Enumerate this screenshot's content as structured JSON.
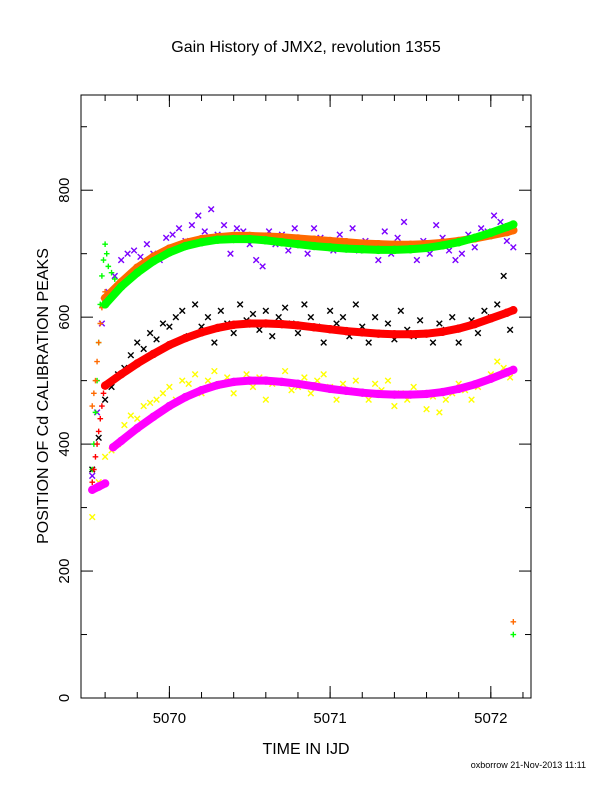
{
  "chart_data": {
    "type": "scatter",
    "title": "Gain History of JMX2, revolution 1355",
    "xlabel": "TIME IN IJD",
    "ylabel": "POSITION OF Cd CALIBRATION PEAKS",
    "xlim": [
      5069.45,
      5072.25
    ],
    "ylim": [
      0,
      950
    ],
    "xticks": [
      "5070",
      "5071",
      "5072"
    ],
    "yticks": [
      "0",
      "200",
      "400",
      "600",
      "800"
    ],
    "grid": false,
    "credit": "oxborrow 21-Nov-2013 11:11",
    "series": [
      {
        "color": "#7b00ff",
        "marker": "x",
        "values_x": [
          5069.52,
          5069.55,
          5069.58,
          5069.62,
          5069.66,
          5069.7,
          5069.74,
          5069.78,
          5069.82,
          5069.86,
          5069.9,
          5069.94,
          5069.98,
          5070.02,
          5070.06,
          5070.1,
          5070.14,
          5070.18,
          5070.22,
          5070.26,
          5070.3,
          5070.34,
          5070.38,
          5070.42,
          5070.46,
          5070.5,
          5070.54,
          5070.58,
          5070.62,
          5070.66,
          5070.7,
          5070.74,
          5070.78,
          5070.82,
          5070.86,
          5070.9,
          5070.94,
          5070.98,
          5071.02,
          5071.06,
          5071.1,
          5071.14,
          5071.18,
          5071.22,
          5071.26,
          5071.3,
          5071.34,
          5071.38,
          5071.42,
          5071.46,
          5071.5,
          5071.54,
          5071.58,
          5071.62,
          5071.66,
          5071.7,
          5071.74,
          5071.78,
          5071.82,
          5071.86,
          5071.9,
          5071.94,
          5071.98,
          5072.02,
          5072.06,
          5072.1,
          5072.14
        ],
        "values_y": [
          350,
          450,
          590,
          640,
          665,
          690,
          700,
          705,
          695,
          715,
          700,
          690,
          725,
          730,
          740,
          720,
          745,
          760,
          735,
          770,
          730,
          745,
          700,
          740,
          735,
          715,
          690,
          680,
          735,
          715,
          730,
          705,
          740,
          720,
          700,
          740,
          725,
          720,
          705,
          730,
          710,
          740,
          705,
          720,
          715,
          690,
          735,
          700,
          725,
          750,
          710,
          690,
          720,
          700,
          745,
          725,
          705,
          690,
          700,
          730,
          710,
          740,
          735,
          760,
          750,
          720,
          710
        ]
      },
      {
        "color": "#000000",
        "marker": "x",
        "values_x": [
          5069.52,
          5069.56,
          5069.6,
          5069.64,
          5069.68,
          5069.72,
          5069.76,
          5069.8,
          5069.84,
          5069.88,
          5069.92,
          5069.96,
          5070.0,
          5070.04,
          5070.08,
          5070.12,
          5070.16,
          5070.2,
          5070.24,
          5070.28,
          5070.32,
          5070.36,
          5070.4,
          5070.44,
          5070.48,
          5070.52,
          5070.56,
          5070.6,
          5070.64,
          5070.68,
          5070.72,
          5070.76,
          5070.8,
          5070.84,
          5070.88,
          5070.92,
          5070.96,
          5071.0,
          5071.04,
          5071.08,
          5071.12,
          5071.16,
          5071.2,
          5071.24,
          5071.28,
          5071.32,
          5071.36,
          5071.4,
          5071.44,
          5071.48,
          5071.52,
          5071.56,
          5071.6,
          5071.64,
          5071.68,
          5071.72,
          5071.76,
          5071.8,
          5071.84,
          5071.88,
          5071.92,
          5071.96,
          5072.0,
          5072.04,
          5072.08,
          5072.12
        ],
        "values_y": [
          360,
          410,
          470,
          490,
          510,
          520,
          540,
          560,
          550,
          575,
          565,
          590,
          585,
          600,
          610,
          570,
          620,
          585,
          600,
          560,
          610,
          590,
          575,
          620,
          595,
          605,
          580,
          610,
          570,
          600,
          615,
          590,
          575,
          620,
          600,
          585,
          560,
          610,
          590,
          600,
          570,
          620,
          585,
          560,
          600,
          575,
          590,
          565,
          610,
          580,
          570,
          595,
          575,
          560,
          590,
          580,
          600,
          560,
          585,
          595,
          575,
          610,
          600,
          620,
          665,
          580
        ]
      },
      {
        "color": "#ffff00",
        "marker": "x",
        "values_x": [
          5069.52,
          5069.56,
          5069.6,
          5069.64,
          5069.68,
          5069.72,
          5069.76,
          5069.8,
          5069.84,
          5069.88,
          5069.92,
          5069.96,
          5070.0,
          5070.04,
          5070.08,
          5070.12,
          5070.16,
          5070.2,
          5070.24,
          5070.28,
          5070.32,
          5070.36,
          5070.4,
          5070.44,
          5070.48,
          5070.52,
          5070.56,
          5070.6,
          5070.64,
          5070.68,
          5070.72,
          5070.76,
          5070.8,
          5070.84,
          5070.88,
          5070.92,
          5070.96,
          5071.0,
          5071.04,
          5071.08,
          5071.12,
          5071.16,
          5071.2,
          5071.24,
          5071.28,
          5071.32,
          5071.36,
          5071.4,
          5071.44,
          5071.48,
          5071.52,
          5071.56,
          5071.6,
          5071.64,
          5071.68,
          5071.72,
          5071.76,
          5071.8,
          5071.84,
          5071.88,
          5071.92,
          5071.96,
          5072.0,
          5072.04,
          5072.08,
          5072.12
        ],
        "values_y": [
          285,
          340,
          380,
          390,
          400,
          430,
          445,
          440,
          460,
          465,
          470,
          480,
          490,
          470,
          500,
          495,
          510,
          480,
          500,
          515,
          495,
          505,
          480,
          500,
          510,
          490,
          505,
          470,
          495,
          500,
          515,
          485,
          490,
          505,
          480,
          500,
          510,
          490,
          470,
          495,
          485,
          500,
          480,
          470,
          495,
          485,
          500,
          460,
          480,
          470,
          490,
          480,
          455,
          475,
          450,
          470,
          480,
          495,
          485,
          470,
          490,
          500,
          510,
          530,
          520,
          505
        ]
      },
      {
        "color": "#00ff00",
        "marker": "+",
        "values_x": [
          5069.52,
          5069.53,
          5069.54,
          5069.55,
          5069.56,
          5069.57,
          5069.58,
          5069.59,
          5069.6,
          5069.61,
          5069.62,
          5069.64,
          5069.66,
          5072.14
        ],
        "values_y": [
          360,
          400,
          450,
          500,
          560,
          620,
          665,
          690,
          715,
          700,
          680,
          670,
          660,
          100
        ]
      },
      {
        "color": "#ff6a00",
        "marker": "+",
        "values_x": [
          5069.52,
          5069.53,
          5069.54,
          5069.55,
          5069.56,
          5069.57,
          5069.58,
          5069.59,
          5069.6,
          5072.14
        ],
        "values_y": [
          460,
          480,
          500,
          530,
          560,
          590,
          615,
          630,
          640,
          120
        ]
      },
      {
        "color": "#ff0000",
        "marker": "+",
        "values_x": [
          5069.52,
          5069.53,
          5069.54,
          5069.55,
          5069.56,
          5069.57,
          5069.58,
          5069.59,
          5069.6
        ],
        "values_y": [
          340,
          360,
          380,
          400,
          420,
          440,
          460,
          480,
          495
        ]
      },
      {
        "color": "#ff6a00",
        "marker": "fit",
        "values_x": [
          5069.6,
          5069.7,
          5069.8,
          5069.9,
          5070.0,
          5070.1,
          5070.2,
          5070.3,
          5070.4,
          5070.5,
          5070.6,
          5070.7,
          5070.8,
          5070.9,
          5071.0,
          5071.1,
          5071.2,
          5071.3,
          5071.4,
          5071.5,
          5071.6,
          5071.7,
          5071.8,
          5071.9,
          5072.0,
          5072.1,
          5072.14
        ],
        "values_y": [
          630,
          655,
          678,
          695,
          708,
          717,
          723,
          726,
          728,
          728,
          727,
          726,
          724,
          722,
          720,
          718,
          716,
          715,
          714,
          714,
          715,
          717,
          720,
          724,
          729,
          734,
          737
        ]
      },
      {
        "color": "#00ff00",
        "marker": "fit",
        "values_x": [
          5069.6,
          5069.7,
          5069.8,
          5069.9,
          5070.0,
          5070.1,
          5070.2,
          5070.3,
          5070.4,
          5070.5,
          5070.6,
          5070.7,
          5070.8,
          5070.9,
          5071.0,
          5071.1,
          5071.2,
          5071.3,
          5071.4,
          5071.5,
          5071.6,
          5071.7,
          5071.8,
          5071.9,
          5072.0,
          5072.1,
          5072.14
        ],
        "values_y": [
          620,
          648,
          670,
          688,
          702,
          712,
          718,
          722,
          723,
          723,
          721,
          718,
          715,
          712,
          710,
          708,
          707,
          706,
          706,
          707,
          709,
          713,
          718,
          725,
          733,
          742,
          746
        ]
      },
      {
        "color": "#ff0000",
        "marker": "fit",
        "values_x": [
          5069.6,
          5069.7,
          5069.8,
          5069.9,
          5070.0,
          5070.1,
          5070.2,
          5070.3,
          5070.4,
          5070.5,
          5070.6,
          5070.7,
          5070.8,
          5070.9,
          5071.0,
          5071.1,
          5071.2,
          5071.3,
          5071.4,
          5071.5,
          5071.6,
          5071.7,
          5071.8,
          5071.9,
          5072.0,
          5072.1,
          5072.14
        ],
        "values_y": [
          492,
          510,
          527,
          542,
          556,
          567,
          576,
          583,
          588,
          590,
          590,
          589,
          587,
          584,
          581,
          578,
          576,
          574,
          573,
          573,
          574,
          577,
          582,
          589,
          598,
          607,
          611
        ]
      },
      {
        "color": "#ff00ff",
        "marker": "fit",
        "values_x": [
          5069.52,
          5069.56,
          5069.6,
          5069.65,
          5069.7,
          5069.8,
          5069.9,
          5070.0,
          5070.1,
          5070.2,
          5070.3,
          5070.4,
          5070.5,
          5070.6,
          5070.7,
          5070.8,
          5070.9,
          5071.0,
          5071.1,
          5071.2,
          5071.3,
          5071.4,
          5071.5,
          5071.6,
          5071.7,
          5071.8,
          5071.9,
          5072.0,
          5072.1,
          5072.14
        ],
        "values_y": [
          328,
          333,
          338,
          395,
          405,
          425,
          443,
          460,
          474,
          485,
          493,
          498,
          500,
          500,
          498,
          495,
          491,
          487,
          484,
          481,
          479,
          478,
          478,
          479,
          482,
          487,
          494,
          503,
          513,
          517
        ]
      }
    ]
  }
}
